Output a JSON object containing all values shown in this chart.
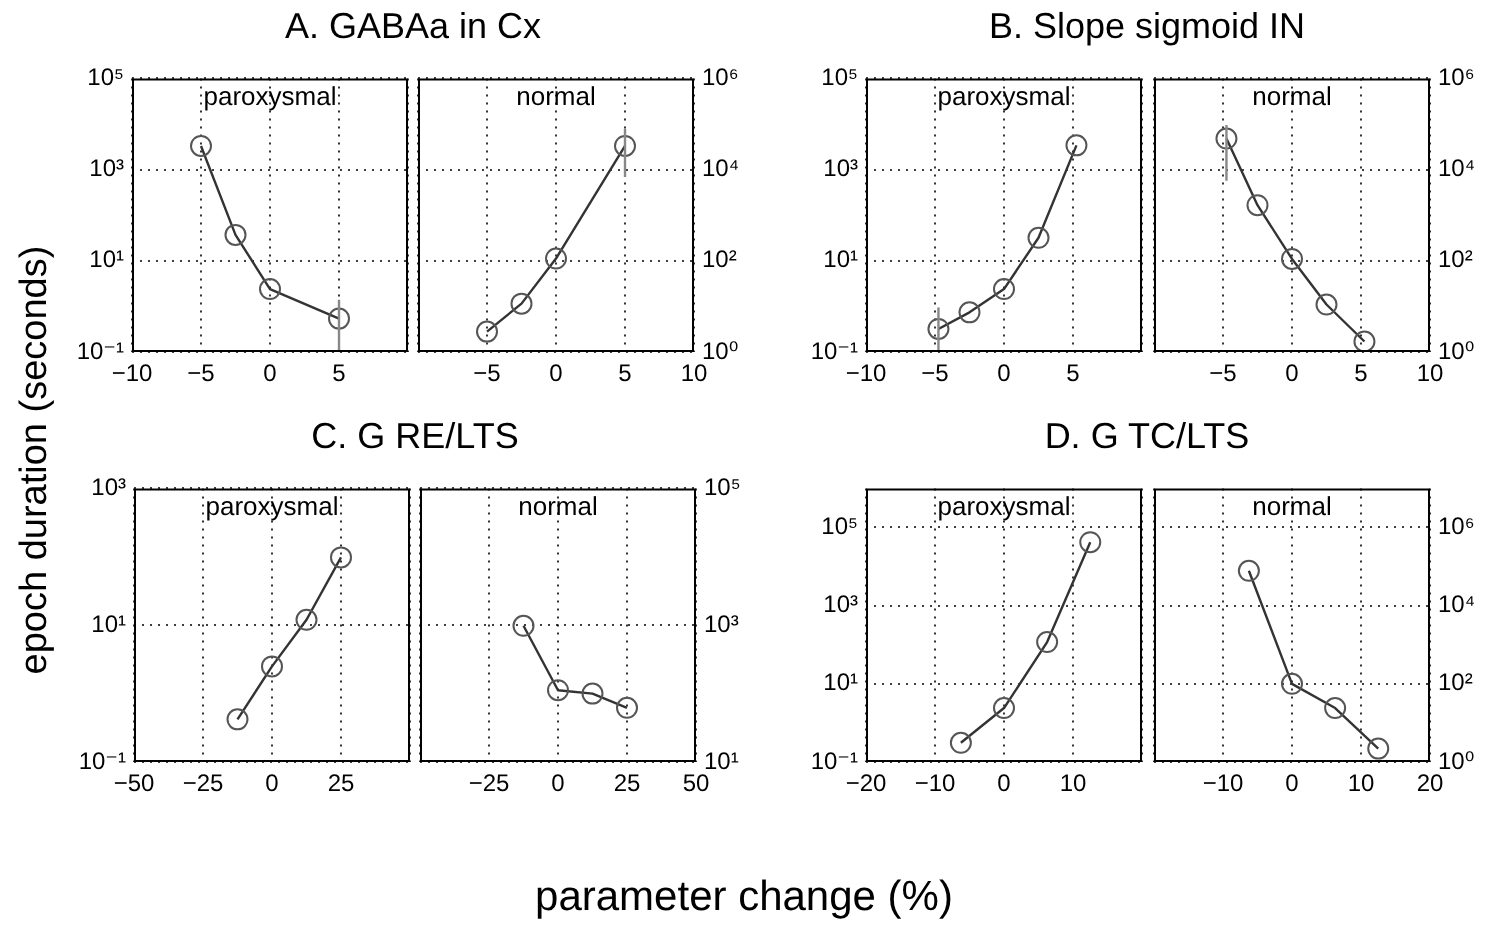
{
  "chart_data": [
    {
      "type": "line",
      "title": "A. GABAa in Cx",
      "subtitle": "paroxysmal",
      "xlabel": "parameter change (%)",
      "ylabel": "epoch duration (seconds)",
      "log": "y",
      "grid": true,
      "marker": "circle",
      "line_style": "solid",
      "xlim": [
        -10,
        10
      ],
      "xticks": [
        {
          "value": -10,
          "label": "−10"
        },
        {
          "value": -5,
          "label": "−5"
        },
        0,
        5,
        {
          "value": 10,
          "label": null
        }
      ],
      "ylim": [
        0.1,
        100000
      ],
      "yticks": [
        {
          "value": 0.1,
          "label": "10⁻¹"
        },
        {
          "value": 10,
          "label": "10¹"
        },
        {
          "value": 1000,
          "label": "10³"
        },
        {
          "value": 100000,
          "label": "10⁵"
        }
      ],
      "x": [
        -5,
        -2.5,
        0,
        5
      ],
      "series": [
        {
          "color": "#333333",
          "values": [
            3300,
            37,
            2.4,
            0.54
          ],
          "errors": [
            null,
            null,
            null,
            [
              0.1,
              1.4
            ]
          ]
        }
      ]
    },
    {
      "type": "line",
      "subtitle": "normal",
      "log": "y",
      "grid": true,
      "marker": "circle",
      "line_style": "solid",
      "xlim": [
        -10,
        10
      ],
      "xticks": [
        {
          "value": -10,
          "label": null
        },
        {
          "value": -5,
          "label": "−5"
        },
        0,
        5,
        10
      ],
      "ylim": [
        1,
        1000000
      ],
      "yticks": [
        {
          "value": 1,
          "label": "10⁰"
        },
        {
          "value": 100,
          "label": "10²"
        },
        {
          "value": 10000,
          "label": "10⁴"
        },
        {
          "value": 1000000,
          "label": "10⁶"
        }
      ],
      "x": [
        -5,
        -2.5,
        0,
        5
      ],
      "series": [
        {
          "color": "#333333",
          "values": [
            2.8,
            11.5,
            112,
            33000
          ],
          "errors": [
            null,
            null,
            null,
            [
              6900,
              79000
            ]
          ]
        }
      ]
    },
    {
      "type": "line",
      "title": "B. Slope sigmoid IN",
      "subtitle": "paroxysmal",
      "log": "y",
      "grid": true,
      "marker": "circle",
      "line_style": "solid",
      "xlim": [
        -10,
        10
      ],
      "xticks": [
        {
          "value": -10,
          "label": "−10"
        },
        {
          "value": -5,
          "label": "−5"
        },
        0,
        5,
        {
          "value": 10,
          "label": null
        }
      ],
      "ylim": [
        0.1,
        100000
      ],
      "yticks": [
        {
          "value": 0.1,
          "label": "10⁻¹"
        },
        {
          "value": 10,
          "label": "10¹"
        },
        {
          "value": 1000,
          "label": "10³"
        },
        {
          "value": 100000,
          "label": "10⁵"
        }
      ],
      "x": [
        -4.75,
        -2.5,
        0,
        2.5,
        5.25
      ],
      "series": [
        {
          "color": "#333333",
          "values": [
            0.32,
            0.74,
            2.4,
            32,
            3400
          ],
          "errors": [
            [
              0.1,
              0.95
            ],
            null,
            null,
            null,
            null
          ]
        }
      ]
    },
    {
      "type": "line",
      "subtitle": "normal",
      "log": "y",
      "grid": true,
      "marker": "circle",
      "line_style": "solid",
      "xlim": [
        -10,
        10
      ],
      "xticks": [
        {
          "value": -10,
          "label": null
        },
        {
          "value": -5,
          "label": "−5"
        },
        0,
        5,
        10
      ],
      "ylim": [
        1,
        1000000
      ],
      "yticks": [
        {
          "value": 1,
          "label": "10⁰"
        },
        {
          "value": 100,
          "label": "10²"
        },
        {
          "value": 10000,
          "label": "10⁴"
        },
        {
          "value": 1000000,
          "label": "10⁶"
        }
      ],
      "x": [
        -4.75,
        -2.5,
        0,
        2.5,
        5.25
      ],
      "series": [
        {
          "color": "#333333",
          "values": [
            48000,
            1660,
            110,
            11,
            1.7
          ],
          "errors": [
            [
              5700,
              95000
            ],
            null,
            null,
            null,
            null
          ]
        }
      ]
    },
    {
      "type": "line",
      "title": "C. G RE/LTS",
      "subtitle": "paroxysmal",
      "log": "y",
      "grid": true,
      "marker": "circle",
      "line_style": "solid",
      "xlim": [
        -50,
        50
      ],
      "xticks": [
        {
          "value": -50,
          "label": "−50"
        },
        {
          "value": -25,
          "label": "−25"
        },
        0,
        25,
        {
          "value": 50,
          "label": null
        }
      ],
      "ylim": [
        0.1,
        1000
      ],
      "yticks": [
        {
          "value": 0.1,
          "label": "10⁻¹"
        },
        {
          "value": 10,
          "label": "10¹"
        },
        {
          "value": 1000,
          "label": "10³"
        }
      ],
      "x": [
        -12.5,
        0,
        12.5,
        25
      ],
      "series": [
        {
          "color": "#333333",
          "values": [
            0.42,
            2.5,
            12,
            98
          ]
        }
      ]
    },
    {
      "type": "line",
      "subtitle": "normal",
      "log": "y",
      "grid": true,
      "marker": "circle",
      "line_style": "solid",
      "xlim": [
        -50,
        50
      ],
      "xticks": [
        {
          "value": -50,
          "label": null
        },
        {
          "value": -25,
          "label": "−25"
        },
        0,
        25,
        50
      ],
      "ylim": [
        10,
        100000
      ],
      "yticks": [
        {
          "value": 10,
          "label": "10¹"
        },
        {
          "value": 1000,
          "label": "10³"
        },
        {
          "value": 100000,
          "label": "10⁵"
        }
      ],
      "x": [
        -12.5,
        0,
        12.5,
        25
      ],
      "series": [
        {
          "color": "#333333",
          "values": [
            980,
            112,
            100,
            62
          ]
        }
      ]
    },
    {
      "type": "line",
      "title": "D. G TC/LTS",
      "subtitle": "paroxysmal",
      "log": "y",
      "grid": true,
      "marker": "circle",
      "line_style": "solid",
      "xlim": [
        -20,
        20
      ],
      "xticks": [
        {
          "value": -20,
          "label": "−20"
        },
        {
          "value": -10,
          "label": "−10"
        },
        0,
        10,
        {
          "value": 20,
          "label": null
        }
      ],
      "ylim": [
        0.1,
        1000000
      ],
      "yticks": [
        {
          "value": 0.1,
          "label": "10⁻¹"
        },
        {
          "value": 10,
          "label": "10¹"
        },
        {
          "value": 1000,
          "label": "10³"
        },
        {
          "value": 100000,
          "label": "10⁵"
        }
      ],
      "x": [
        -6.25,
        0,
        6.25,
        12.5
      ],
      "series": [
        {
          "color": "#333333",
          "values": [
            0.31,
            2.4,
            117,
            42000
          ]
        }
      ]
    },
    {
      "type": "line",
      "subtitle": "normal",
      "log": "y",
      "grid": true,
      "marker": "circle",
      "line_style": "solid",
      "xlim": [
        -20,
        20
      ],
      "xticks": [
        {
          "value": -20,
          "label": null
        },
        {
          "value": -10,
          "label": "−10"
        },
        0,
        10,
        20
      ],
      "ylim": [
        1,
        10000000
      ],
      "yticks": [
        {
          "value": 1,
          "label": "10⁰"
        },
        {
          "value": 100,
          "label": "10²"
        },
        {
          "value": 10000,
          "label": "10⁴"
        },
        {
          "value": 1000000,
          "label": "10⁶"
        }
      ],
      "x": [
        -6.25,
        0,
        6.25,
        12.5
      ],
      "series": [
        {
          "color": "#333333",
          "values": [
            78000,
            100,
            24,
            2.2
          ]
        }
      ]
    }
  ]
}
